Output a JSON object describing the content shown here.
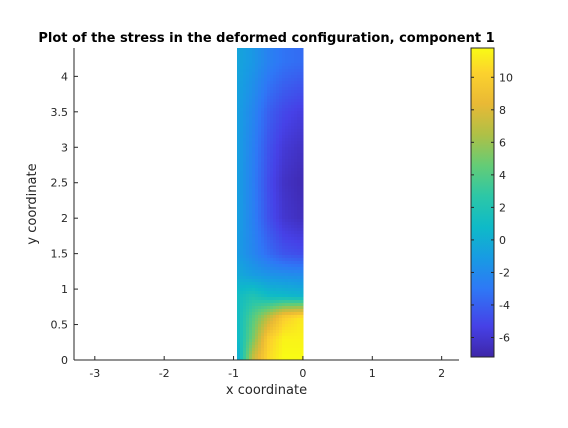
{
  "chart_data": {
    "type": "heatmap",
    "title": "Plot of the stress in the deformed configuration, component 1",
    "xlabel": "x coordinate",
    "ylabel": "y coordinate",
    "xlim": [
      -3.3,
      2.25
    ],
    "ylim": [
      0,
      4.4
    ],
    "xticks": [
      -3,
      -2,
      -1,
      0,
      1,
      2
    ],
    "yticks": [
      0,
      0.5,
      1,
      1.5,
      2,
      2.5,
      3,
      3.5,
      4
    ],
    "xtick_labels": [
      "-3",
      "-2",
      "-1",
      "0",
      "1",
      "2"
    ],
    "ytick_labels": [
      "0",
      "0.5",
      "1",
      "1.5",
      "2",
      "2.5",
      "3",
      "3.5",
      "4"
    ],
    "grid": false,
    "colormap": "parula",
    "colorbar": {
      "location": "right",
      "range": [
        -7.2,
        11.8
      ],
      "ticks": [
        -6,
        -4,
        -2,
        0,
        2,
        4,
        6,
        8,
        10
      ],
      "tick_labels": [
        "-6",
        "-4",
        "-2",
        "0",
        "2",
        "4",
        "6",
        "8",
        "10"
      ]
    },
    "field": {
      "x_range": [
        -0.95,
        0
      ],
      "y_range": [
        0,
        4.4
      ],
      "x": [
        -0.95,
        -0.725,
        -0.5,
        -0.275,
        -0.05
      ],
      "y": [
        4.2,
        3.5,
        3.0,
        2.5,
        2.0,
        1.5,
        1.2,
        0.9,
        0.6,
        0.3,
        0.05
      ],
      "values": [
        [
          -0.5,
          -1.3,
          -2.5,
          -3.2,
          -3.5
        ],
        [
          -0.8,
          -2.2,
          -4.0,
          -5.0,
          -5.5
        ],
        [
          -0.8,
          -2.5,
          -4.5,
          -5.8,
          -6.3
        ],
        [
          -0.8,
          -2.6,
          -4.8,
          -6.3,
          -6.8
        ],
        [
          -0.8,
          -2.5,
          -4.6,
          -6.0,
          -6.5
        ],
        [
          -1.0,
          -2.2,
          -3.5,
          -4.5,
          -4.8
        ],
        [
          -0.2,
          -1.0,
          -1.5,
          -1.8,
          -2.0
        ],
        [
          1.0,
          2.0,
          1.0,
          0.8,
          0.5
        ],
        [
          0.8,
          4.0,
          7.0,
          10.0,
          11.0
        ],
        [
          0.5,
          5.0,
          10.0,
          11.5,
          11.5
        ],
        [
          -0.5,
          7.0,
          10.5,
          11.8,
          11.8
        ]
      ]
    }
  }
}
